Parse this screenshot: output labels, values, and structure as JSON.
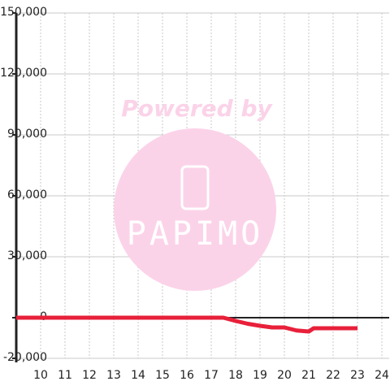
{
  "chart_data": {
    "type": "line",
    "x": [
      9,
      10,
      11,
      12,
      13,
      14,
      15,
      16,
      17,
      17.5,
      18,
      18.5,
      19,
      19.5,
      20,
      20.5,
      21,
      21.2,
      22,
      23
    ],
    "series": [
      {
        "color": "#e8203a",
        "values": [
          0,
          0,
          0,
          0,
          0,
          0,
          0,
          0,
          0,
          0,
          -1600,
          -3000,
          -4000,
          -4800,
          -4800,
          -6300,
          -6800,
          -5200,
          -5200,
          -5200
        ]
      }
    ],
    "xlim": [
      9,
      24.3
    ],
    "xticks": [
      10,
      11,
      12,
      13,
      14,
      15,
      16,
      17,
      18,
      19,
      20,
      21,
      22,
      23,
      24
    ],
    "ylim": [
      -20000,
      150000
    ],
    "yticks": [
      {
        "value": -20000,
        "label": "-20,000"
      },
      0,
      {
        "value": 30000,
        "label": "30,000"
      },
      {
        "value": 60000,
        "label": "60,000"
      },
      {
        "value": 90000,
        "label": "90,000"
      },
      {
        "value": 120000,
        "label": "120,000"
      },
      {
        "value": 150000,
        "label": "150,000"
      }
    ],
    "grid": true,
    "watermark": {
      "line1": "Powered by",
      "line2": "PAPIMO"
    }
  }
}
